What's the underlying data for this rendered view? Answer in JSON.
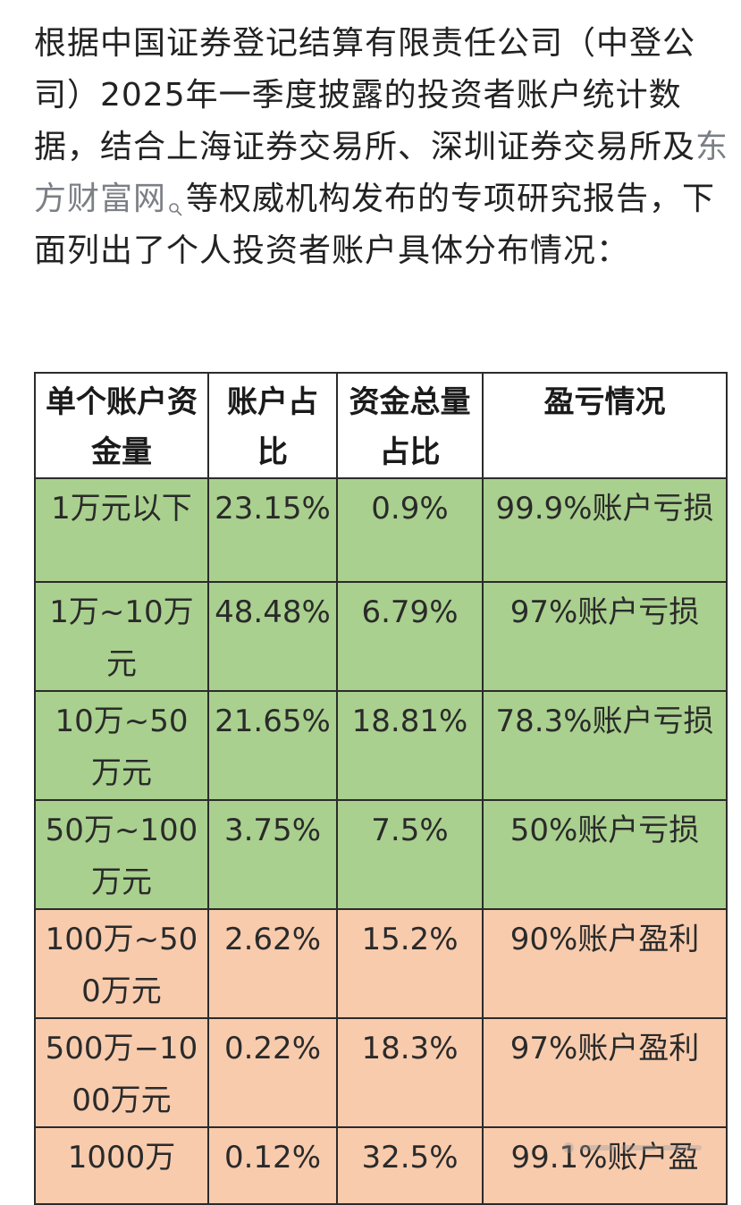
{
  "intro": {
    "part1": "根据中国证券登记结算有限责任公司（中登公司）2025年一季度披露的投资者账户统计数据，结合上海证券交易所、深圳证券交易所及",
    "link_text": "东方财富网",
    "part2": "等权威机构发布的专项研究报告，下面列出了个人投资者账户具体分布情况："
  },
  "table": {
    "headers": [
      "单个账户资金量",
      "账户占比",
      "资金总量占比",
      "盈亏情况"
    ],
    "rows": [
      {
        "fund": "1万元以下",
        "account_share": "23.15%",
        "capital_share": "0.9%",
        "pnl": "99.9%账户亏损",
        "tone": "green"
      },
      {
        "fund": "1万~10万元",
        "account_share": "48.48%",
        "capital_share": "6.79%",
        "pnl": "97%账户亏损",
        "tone": "green"
      },
      {
        "fund": "10万~50万元",
        "account_share": "21.65%",
        "capital_share": "18.81%",
        "pnl": "78.3%账户亏损",
        "tone": "green"
      },
      {
        "fund": "50万~100万元",
        "account_share": "3.75%",
        "capital_share": "7.5%",
        "pnl": "50%账户亏损",
        "tone": "green"
      },
      {
        "fund": "100万~500万元",
        "account_share": "2.62%",
        "capital_share": "15.2%",
        "pnl": "90%账户盈利",
        "tone": "peach"
      },
      {
        "fund": "500万−1000万元",
        "account_share": "0.22%",
        "capital_share": "18.3%",
        "pnl": "97%账户盈利",
        "tone": "peach"
      },
      {
        "fund": "1000万",
        "account_share": "0.12%",
        "capital_share": "32.5%",
        "pnl": "99.1%账户盈",
        "tone": "peach"
      }
    ]
  },
  "colors": {
    "loss_row": "#a9d08e",
    "profit_row": "#f8cbad",
    "link": "#7b7f86"
  },
  "icons": {
    "inline_search": "search-icon"
  }
}
